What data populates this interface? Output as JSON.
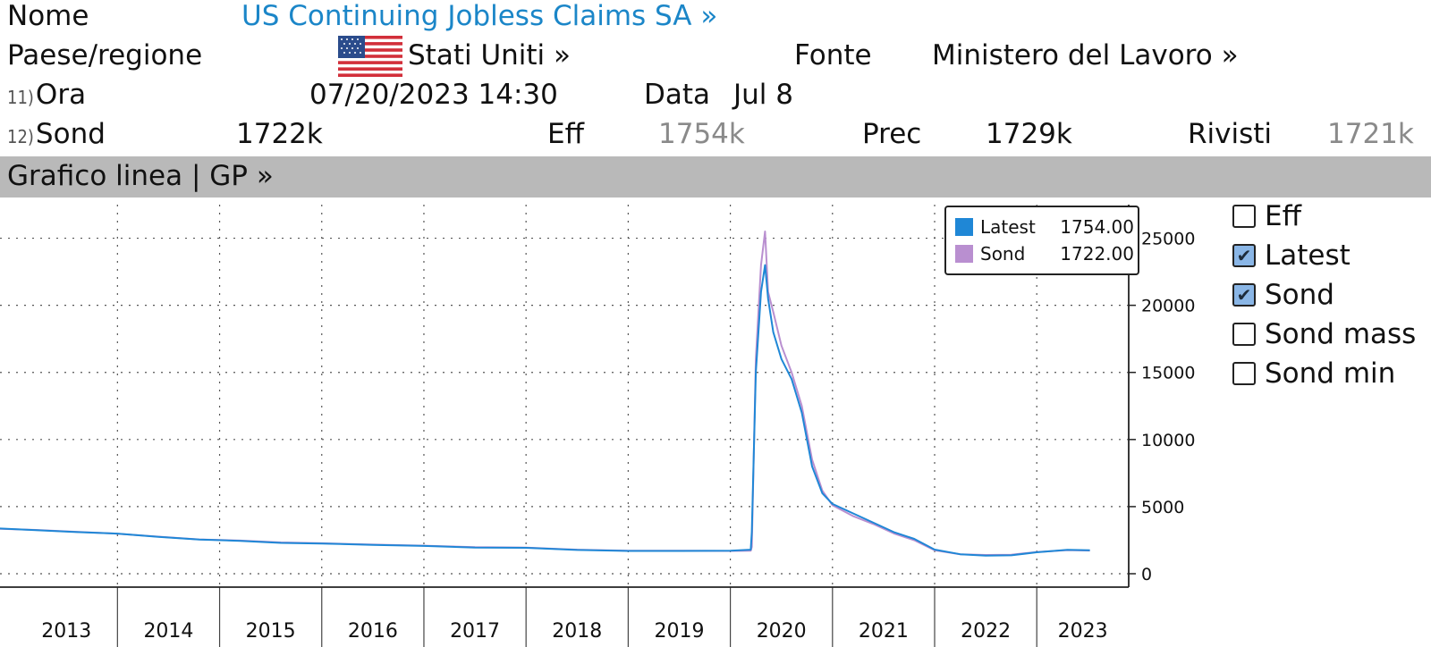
{
  "header": {
    "name_label": "Nome",
    "name_value": "US Continuing Jobless Claims SA »",
    "country_label": "Paese/regione",
    "country_value": "Stati Uniti »",
    "source_label": "Fonte",
    "source_value": "Ministero del Lavoro »",
    "time_num": "11)",
    "time_label": "Ora",
    "time_value": "07/20/2023 14:30",
    "date_label": "Data",
    "date_value": "Jul 8",
    "survey_num": "12)",
    "survey_label": "Sond",
    "survey_value": "1722k",
    "actual_label": "Eff",
    "actual_value": "1754k",
    "prior_label": "Prec",
    "prior_value": "1729k",
    "revised_label": "Rivisti",
    "revised_value": "1721k"
  },
  "band": {
    "title": "Grafico linea | GP »"
  },
  "legend": {
    "rows": [
      {
        "name": "Latest",
        "value": "1754.00",
        "color": "#1f87d6"
      },
      {
        "name": "Sond",
        "value": "1722.00",
        "color": "#b98fd0"
      }
    ]
  },
  "toggles": [
    {
      "label": "Eff",
      "checked": false
    },
    {
      "label": "Latest",
      "checked": true
    },
    {
      "label": "Sond",
      "checked": true
    },
    {
      "label": "Sond mass",
      "checked": false
    },
    {
      "label": "Sond min",
      "checked": false
    }
  ],
  "colors": {
    "latest": "#1f87d6",
    "survey": "#b98fd0",
    "band": "#b9b9b9",
    "link": "#1b86c8"
  },
  "icons": {
    "flag": "us-flag-icon",
    "checkbox_checked": "check-icon"
  },
  "chart_data": {
    "type": "line",
    "x_ticks": [
      "2013",
      "2014",
      "2015",
      "2016",
      "2017",
      "2018",
      "2019",
      "2020",
      "2021",
      "2022",
      "2023"
    ],
    "y_ticks": [
      0,
      5000,
      10000,
      15000,
      20000,
      25000
    ],
    "ylim": [
      0,
      27500
    ],
    "xlim": [
      2012.85,
      2023.9
    ],
    "grid": true,
    "legend_position": "top-right",
    "series": [
      {
        "name": "Latest",
        "points": [
          [
            2012.85,
            3370
          ],
          [
            2013.2,
            3250
          ],
          [
            2013.6,
            3100
          ],
          [
            2014.0,
            2990
          ],
          [
            2014.4,
            2750
          ],
          [
            2014.8,
            2550
          ],
          [
            2015.2,
            2450
          ],
          [
            2015.6,
            2300
          ],
          [
            2016.0,
            2250
          ],
          [
            2016.5,
            2150
          ],
          [
            2017.0,
            2070
          ],
          [
            2017.5,
            1950
          ],
          [
            2018.0,
            1930
          ],
          [
            2018.5,
            1770
          ],
          [
            2019.0,
            1700
          ],
          [
            2019.5,
            1700
          ],
          [
            2020.0,
            1720
          ],
          [
            2020.2,
            1790
          ],
          [
            2020.21,
            3100
          ],
          [
            2020.25,
            15000
          ],
          [
            2020.3,
            21000
          ],
          [
            2020.34,
            23000
          ],
          [
            2020.37,
            20500
          ],
          [
            2020.42,
            18000
          ],
          [
            2020.5,
            16000
          ],
          [
            2020.6,
            14500
          ],
          [
            2020.7,
            12000
          ],
          [
            2020.8,
            8000
          ],
          [
            2020.9,
            6000
          ],
          [
            2021.0,
            5200
          ],
          [
            2021.2,
            4500
          ],
          [
            2021.4,
            3800
          ],
          [
            2021.6,
            3100
          ],
          [
            2021.8,
            2600
          ],
          [
            2022.0,
            1800
          ],
          [
            2022.25,
            1450
          ],
          [
            2022.5,
            1350
          ],
          [
            2022.75,
            1370
          ],
          [
            2023.0,
            1600
          ],
          [
            2023.3,
            1780
          ],
          [
            2023.52,
            1754
          ]
        ]
      },
      {
        "name": "Sond",
        "points": [
          [
            2012.85,
            3340
          ],
          [
            2013.2,
            3260
          ],
          [
            2013.6,
            3120
          ],
          [
            2014.0,
            2980
          ],
          [
            2014.4,
            2760
          ],
          [
            2014.8,
            2560
          ],
          [
            2015.2,
            2470
          ],
          [
            2015.6,
            2330
          ],
          [
            2016.0,
            2270
          ],
          [
            2016.5,
            2170
          ],
          [
            2017.0,
            2090
          ],
          [
            2017.5,
            1980
          ],
          [
            2018.0,
            1950
          ],
          [
            2018.5,
            1790
          ],
          [
            2019.0,
            1710
          ],
          [
            2019.5,
            1720
          ],
          [
            2020.0,
            1700
          ],
          [
            2020.2,
            1710
          ],
          [
            2020.21,
            2000
          ],
          [
            2020.25,
            16000
          ],
          [
            2020.3,
            23000
          ],
          [
            2020.34,
            25500
          ],
          [
            2020.37,
            21000
          ],
          [
            2020.42,
            19500
          ],
          [
            2020.5,
            17000
          ],
          [
            2020.6,
            15000
          ],
          [
            2020.7,
            12500
          ],
          [
            2020.8,
            8500
          ],
          [
            2020.9,
            6200
          ],
          [
            2021.0,
            5100
          ],
          [
            2021.2,
            4300
          ],
          [
            2021.4,
            3700
          ],
          [
            2021.6,
            3000
          ],
          [
            2021.8,
            2500
          ],
          [
            2022.0,
            1750
          ],
          [
            2022.25,
            1450
          ],
          [
            2022.5,
            1400
          ],
          [
            2022.75,
            1420
          ],
          [
            2023.0,
            1620
          ],
          [
            2023.3,
            1760
          ],
          [
            2023.52,
            1722
          ]
        ]
      }
    ]
  }
}
